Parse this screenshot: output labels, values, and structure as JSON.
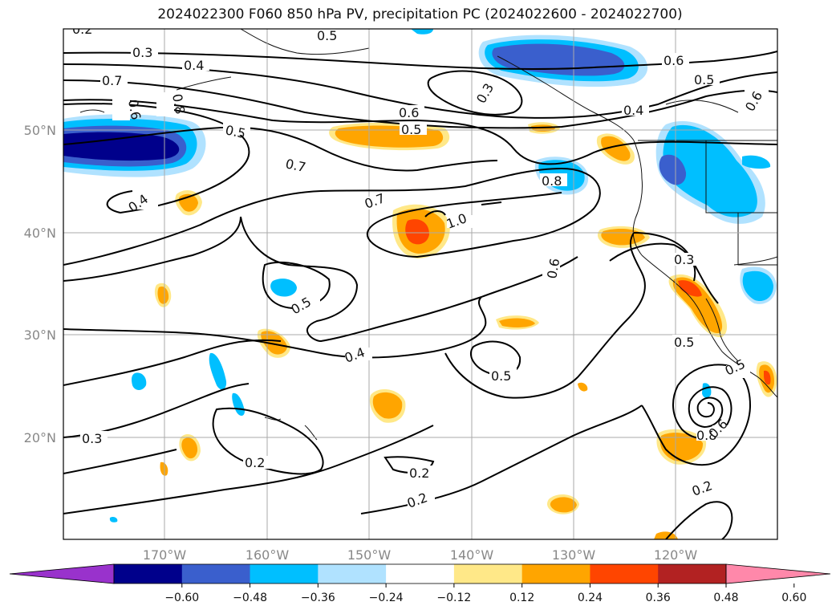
{
  "title": "2024022300 F060 850 hPa PV, precipitation PC (2024022600 - 2024022700)",
  "lat_labels": [
    "50°N",
    "40°N",
    "30°N",
    "20°N"
  ],
  "lon_labels": [
    "170°W",
    "160°W",
    "150°W",
    "140°W",
    "130°W",
    "120°W"
  ],
  "contour_labels": [
    "0.2",
    "0.3",
    "0.4",
    "0.5",
    "0.7",
    "0.8",
    "0.6",
    "0.5",
    "0.7",
    "0.6",
    "0.5",
    "0.4",
    "0.6",
    "0.5",
    "0.4",
    "0.7",
    "0.8",
    "1.0",
    "0.6",
    "0.5",
    "0.4",
    "0.3",
    "0.5",
    "0.2",
    "0.3",
    "0.2",
    "0.2",
    "0.5",
    "0.2",
    "0.8",
    "0.6",
    "0.5",
    "0.3",
    "0.6"
  ],
  "colorbar": {
    "ticks": [
      "−0.60",
      "−0.48",
      "−0.36",
      "−0.24",
      "−0.12",
      "0.12",
      "0.24",
      "0.36",
      "0.48",
      "0.60"
    ],
    "colors": [
      "#9932cc",
      "#00008b",
      "#3a5fcd",
      "#00bfff",
      "#b0e2ff",
      "#ffffff",
      "#ffe888",
      "#ffa500",
      "#ff4500",
      "#b22222",
      "#ff88aa"
    ]
  }
}
